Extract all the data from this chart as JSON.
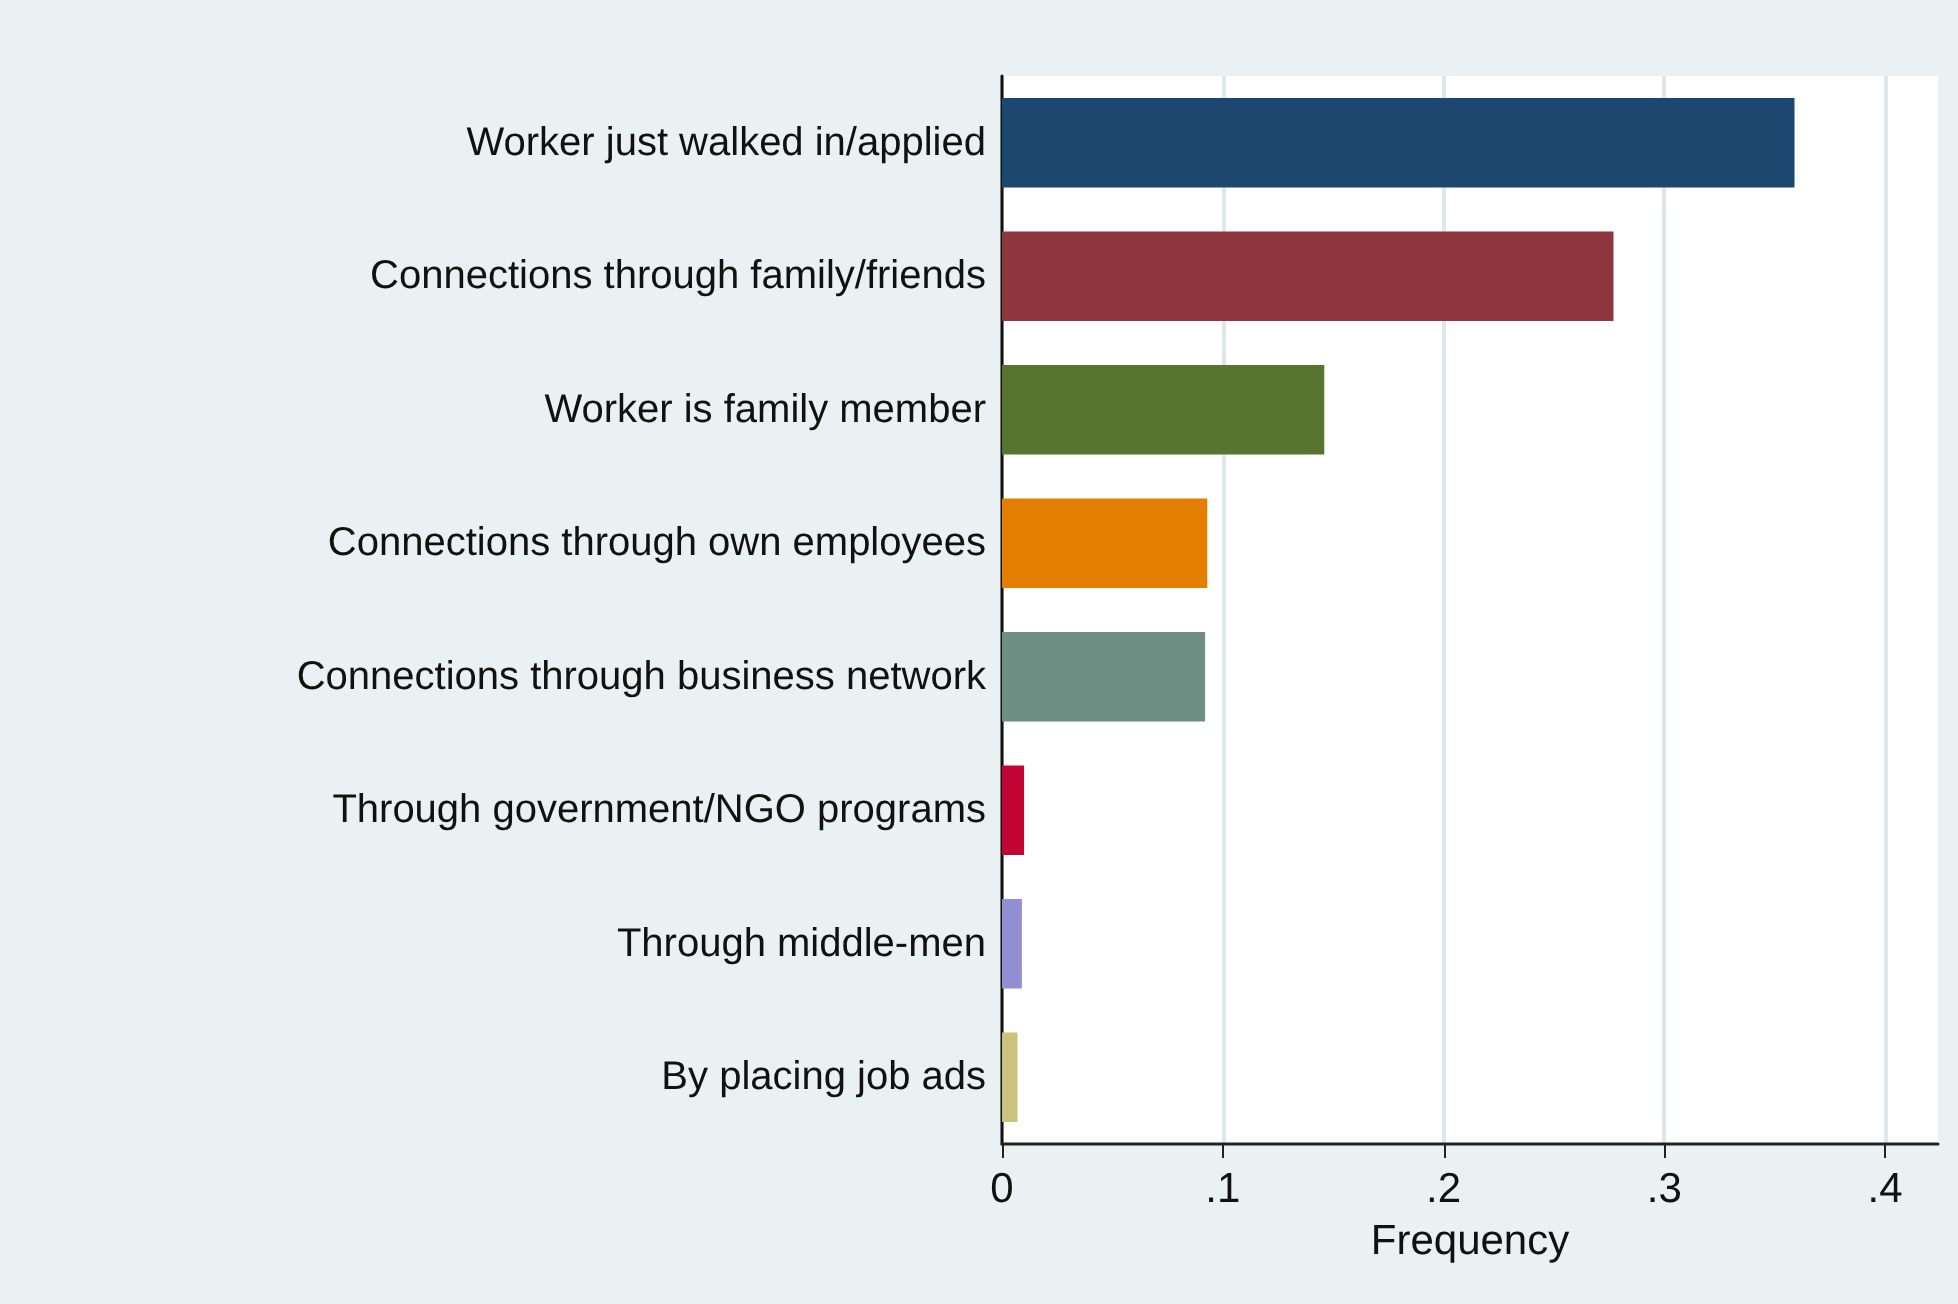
{
  "chart_data": {
    "type": "bar",
    "orientation": "horizontal",
    "xlabel": "Frequency",
    "categories": [
      "Worker just walked in/applied",
      "Connections through family/friends",
      "Worker is family member",
      "Connections through own employees",
      "Connections through business network",
      "Through government/NGO programs",
      "Through middle-men",
      "By placing job ads"
    ],
    "values": [
      0.359,
      0.277,
      0.146,
      0.093,
      0.092,
      0.01,
      0.009,
      0.007
    ],
    "colors": [
      "#1c476f",
      "#8f353d",
      "#577431",
      "#e37e00",
      "#6e8e84",
      "#c10534",
      "#938dd2",
      "#cac27e"
    ],
    "xlim": [
      0,
      0.424
    ],
    "xticks": [
      0,
      {
        "value": 0.1,
        "label": ".1"
      },
      {
        "value": 0.2,
        "label": ".2"
      },
      {
        "value": 0.3,
        "label": ".3"
      },
      {
        "value": 0.4,
        "label": ".4"
      }
    ],
    "grid": "x"
  }
}
